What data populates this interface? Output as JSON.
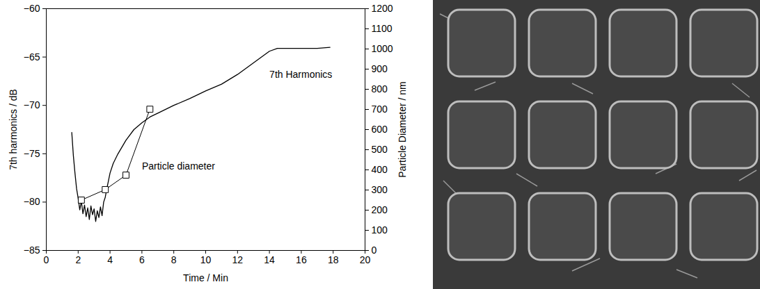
{
  "chart_data": {
    "type": "line",
    "x_label": "Time / Min",
    "y_label": "7th harmonics / dB",
    "y2_label": "Particle Diameter / nm",
    "xlim": [
      0,
      20
    ],
    "xticks": [
      0,
      2,
      4,
      6,
      8,
      10,
      12,
      14,
      16,
      18,
      20
    ],
    "ylim": [
      -85,
      -60
    ],
    "yticks": [
      -85,
      -80,
      -75,
      -70,
      -65,
      -60
    ],
    "y2lim": [
      0,
      1200
    ],
    "y2ticks": [
      0,
      100,
      200,
      300,
      400,
      500,
      600,
      700,
      800,
      900,
      1000,
      1100,
      1200
    ],
    "grid": false,
    "series": [
      {
        "type": "line",
        "color": "#000000",
        "line_style": "solid",
        "marker": "none",
        "x": [
          1.6,
          1.7,
          1.8,
          1.9,
          2.0,
          2.1,
          2.2,
          2.3,
          2.4,
          2.5,
          2.6,
          2.7,
          2.8,
          2.9,
          3.0,
          3.1,
          3.2,
          3.3,
          3.4,
          3.5,
          3.6,
          3.7,
          3.8,
          3.9,
          4.0,
          4.2,
          4.5,
          5.0,
          5.5,
          6.0,
          6.5,
          7.0,
          8.0,
          9.0,
          10.0,
          11.0,
          12.0,
          13.0,
          14.0,
          14.5,
          15.0,
          16.0,
          17.0,
          17.8
        ],
        "values": [
          -72.8,
          -75.2,
          -77.0,
          -78.6,
          -79.6,
          -80.8,
          -79.9,
          -81.2,
          -80.3,
          -81.5,
          -80.6,
          -81.8,
          -80.4,
          -81.3,
          -80.7,
          -82.0,
          -80.9,
          -81.6,
          -80.5,
          -81.4,
          -80.0,
          -79.5,
          -78.6,
          -77.8,
          -77.0,
          -76.0,
          -75.0,
          -73.6,
          -72.5,
          -71.8,
          -71.2,
          -70.8,
          -70.0,
          -69.3,
          -68.5,
          -67.8,
          -66.8,
          -65.6,
          -64.4,
          -64.1,
          -64.1,
          -64.1,
          -64.1,
          -64.0
        ]
      },
      {
        "type": "line",
        "axis": "y2",
        "color": "#000000",
        "line_style": "solid",
        "marker": "square",
        "x": [
          2.2,
          3.7,
          5.0,
          6.5
        ],
        "values": [
          250,
          302,
          374,
          701
        ]
      }
    ],
    "annotations": [
      {
        "text": "7th Harmonics",
        "x": 14.0,
        "y": -66.8
      },
      {
        "text": "Particle diameter",
        "x": 6.0,
        "y": -76.3
      }
    ]
  }
}
